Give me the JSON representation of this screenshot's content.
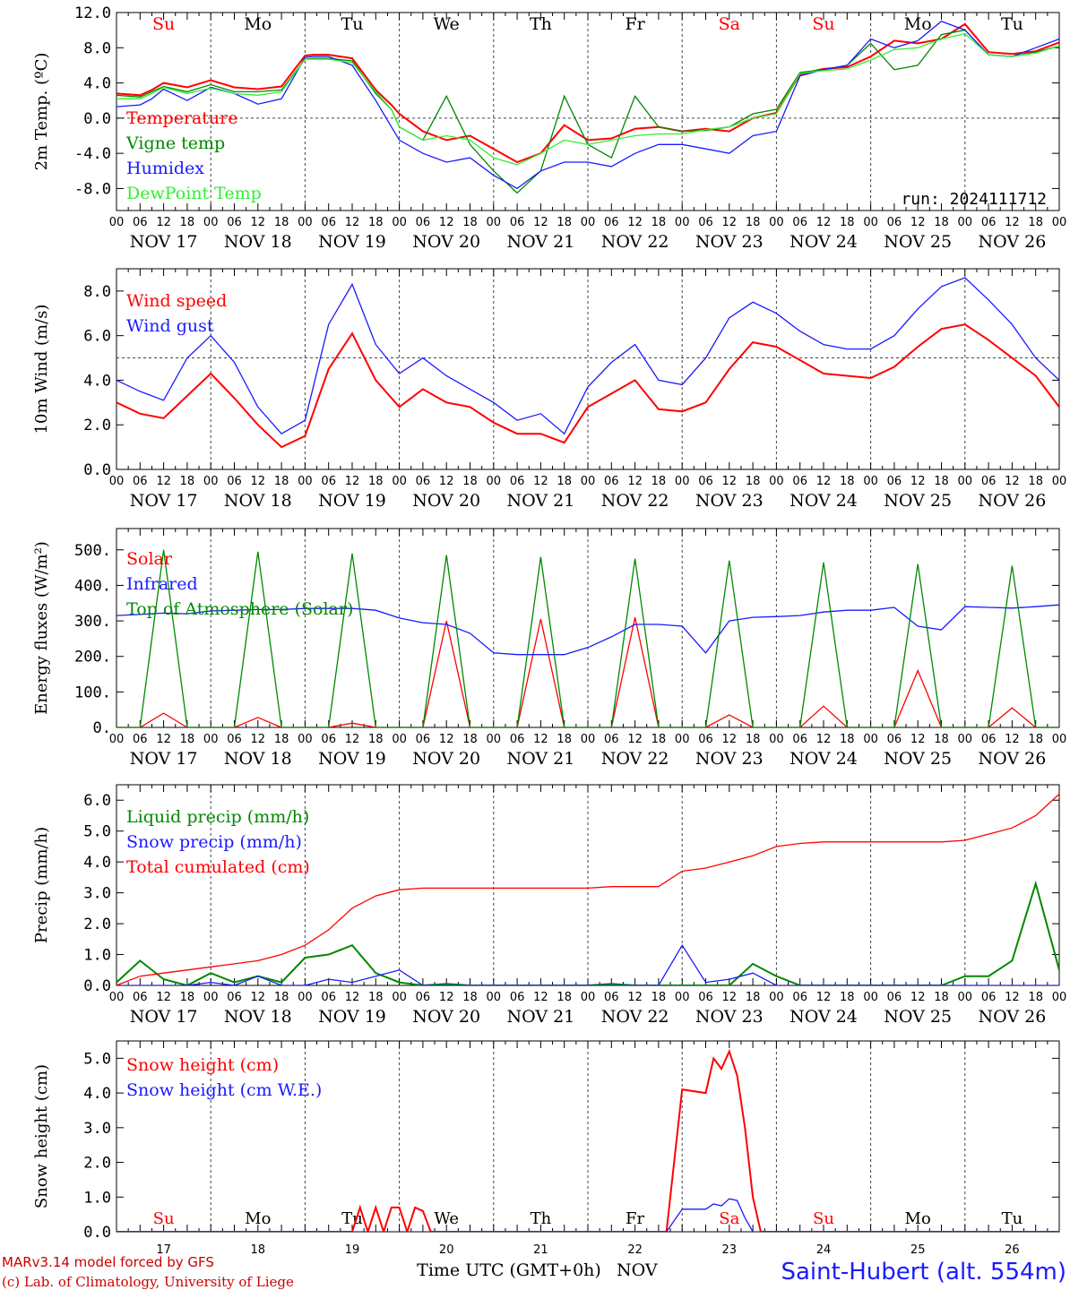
{
  "footer": {
    "model": "MARv3.14 model forced by GFS",
    "credit": "(c) Lab. of Climatology, University of Liege",
    "xaxis_label": "Time UTC (GMT+0h)",
    "xaxis_unit": "NOV",
    "station": "Saint-Hubert (alt. 554m)",
    "color_credit": "#cc0000",
    "color_station": "#1a1aff"
  },
  "run_label": "run: 2024111712",
  "days": {
    "weekday_names": [
      "Su",
      "Mo",
      "Tu",
      "We",
      "Th",
      "Fr",
      "Sa",
      "Su",
      "Mo",
      "Tu"
    ],
    "weekday_colors": [
      "#ff0000",
      "#000000",
      "#000000",
      "#000000",
      "#000000",
      "#000000",
      "#ff0000",
      "#ff0000",
      "#000000",
      "#000000"
    ],
    "date_labels": [
      "NOV 17",
      "NOV 18",
      "NOV 19",
      "NOV 20",
      "NOV 21",
      "NOV 22",
      "NOV 23",
      "NOV 24",
      "NOV 25",
      "NOV 26"
    ],
    "day_numbers": [
      "17",
      "18",
      "19",
      "20",
      "21",
      "22",
      "23",
      "24",
      "25",
      "26"
    ],
    "hour_ticks": [
      "00",
      "06",
      "12",
      "18"
    ],
    "last_tick": "00"
  },
  "chart_data": [
    {
      "type": "line",
      "ylabel": "2m Temp. (ºC)",
      "ylim": [
        -10.5,
        12
      ],
      "yticks": [
        "-8.0",
        "-4.0",
        "0.0",
        "4.0",
        "8.0",
        "12.0"
      ],
      "ytick_values": [
        -8,
        -4,
        0,
        4,
        8,
        12
      ],
      "ref_line": 0,
      "x_hours": [
        0,
        6,
        9,
        12,
        18,
        24,
        30,
        36,
        42,
        48,
        50,
        54,
        60,
        66,
        70,
        72,
        78,
        84,
        90,
        96,
        102,
        108,
        114,
        120,
        126,
        132,
        138,
        144,
        150,
        156,
        162,
        168,
        174,
        180,
        186,
        192,
        198,
        204,
        210,
        216,
        222,
        228,
        234,
        240
      ],
      "series": [
        {
          "name": "Temperature",
          "color": "#ff0000",
          "values": [
            2.8,
            2.6,
            3.2,
            4.0,
            3.5,
            4.3,
            3.5,
            3.3,
            3.6,
            7.1,
            7.2,
            7.2,
            6.8,
            3.2,
            1.5,
            0.5,
            -1.5,
            -2.5,
            -2.0,
            -3.5,
            -5.0,
            -4.0,
            -0.8,
            -2.5,
            -2.3,
            -1.2,
            -1.0,
            -1.5,
            -1.2,
            -1.5,
            0.0,
            0.6,
            5.0,
            5.6,
            5.8,
            7.0,
            8.8,
            8.5,
            9.0,
            10.7,
            7.5,
            7.3,
            7.6,
            8.6
          ]
        },
        {
          "name": "Vigne temp",
          "color": "#008800",
          "values": [
            2.6,
            2.4,
            3.0,
            3.6,
            3.0,
            3.8,
            3.0,
            3.0,
            3.2,
            6.7,
            6.8,
            6.8,
            6.5,
            2.8,
            1.0,
            -1.0,
            -2.5,
            2.5,
            -3.0,
            -6.0,
            -8.5,
            -6.0,
            2.5,
            -3.0,
            -4.5,
            2.5,
            -1.0,
            -1.5,
            -1.4,
            -1.0,
            0.5,
            1.0,
            5.2,
            5.5,
            6.0,
            8.5,
            5.5,
            6.0,
            9.5,
            10.0,
            7.2,
            7.0,
            7.5,
            8.2
          ]
        },
        {
          "name": "Humidex",
          "color": "#1a1aff",
          "values": [
            1.3,
            1.5,
            2.2,
            3.3,
            2.0,
            3.5,
            2.8,
            1.6,
            2.2,
            6.9,
            7.0,
            7.0,
            6.0,
            2.0,
            -1.0,
            -2.5,
            -4.0,
            -5.0,
            -4.5,
            -6.5,
            -8.0,
            -6.0,
            -5.0,
            -5.0,
            -5.5,
            -4.0,
            -3.0,
            -3.0,
            -3.5,
            -4.0,
            -2.0,
            -1.5,
            4.8,
            5.5,
            6.0,
            9.0,
            8.0,
            8.8,
            11.0,
            10.0,
            7.2,
            7.0,
            8.0,
            9.0
          ]
        },
        {
          "name": "DewPoint Temp",
          "color": "#33ee33",
          "values": [
            2.2,
            2.2,
            2.8,
            3.5,
            2.8,
            3.4,
            2.8,
            2.6,
            3.0,
            6.7,
            6.7,
            6.7,
            6.3,
            3.0,
            1.0,
            -1.0,
            -2.5,
            -2.0,
            -2.5,
            -4.5,
            -5.3,
            -4.0,
            -2.5,
            -3.0,
            -2.5,
            -2.0,
            -1.8,
            -1.8,
            -1.3,
            -1.0,
            0.0,
            0.5,
            5.1,
            5.4,
            5.6,
            6.6,
            7.8,
            8.0,
            9.0,
            9.6,
            7.2,
            7.0,
            7.4,
            8.2
          ]
        }
      ]
    },
    {
      "type": "line",
      "ylabel": "10m Wind (m/s)",
      "ylim": [
        0,
        9
      ],
      "yticks": [
        "0.0",
        "2.0",
        "4.0",
        "6.0",
        "8.0"
      ],
      "ytick_values": [
        0,
        2,
        4,
        6,
        8
      ],
      "ref_line": 5,
      "x_hours": [
        0,
        6,
        12,
        18,
        24,
        30,
        36,
        42,
        48,
        54,
        60,
        66,
        72,
        78,
        84,
        90,
        96,
        102,
        108,
        114,
        120,
        126,
        132,
        138,
        144,
        150,
        156,
        162,
        168,
        174,
        180,
        186,
        192,
        198,
        204,
        210,
        216,
        222,
        228,
        234,
        240
      ],
      "series": [
        {
          "name": "Wind speed",
          "color": "#ff0000",
          "values": [
            3.0,
            2.5,
            2.3,
            3.3,
            4.3,
            3.2,
            2.0,
            1.0,
            1.5,
            4.5,
            6.1,
            4.0,
            2.8,
            3.6,
            3.0,
            2.8,
            2.1,
            1.6,
            1.6,
            1.2,
            2.8,
            3.4,
            4.0,
            2.7,
            2.6,
            3.0,
            4.5,
            5.7,
            5.5,
            4.9,
            4.3,
            4.2,
            4.1,
            4.6,
            5.5,
            6.3,
            6.5,
            5.8,
            5.0,
            4.2,
            2.8
          ]
        },
        {
          "name": "Wind gust",
          "color": "#1a1aff",
          "values": [
            4.0,
            3.5,
            3.1,
            5.0,
            6.0,
            4.8,
            2.8,
            1.6,
            2.2,
            6.5,
            8.3,
            5.6,
            4.3,
            5.0,
            4.2,
            3.6,
            3.0,
            2.2,
            2.5,
            1.6,
            3.7,
            4.8,
            5.6,
            4.0,
            3.8,
            5.0,
            6.8,
            7.5,
            7.0,
            6.2,
            5.6,
            5.4,
            5.4,
            6.0,
            7.2,
            8.2,
            8.6,
            7.6,
            6.5,
            5.0,
            4.0
          ]
        }
      ]
    },
    {
      "type": "line",
      "ylabel": "Energy fluxes (W/m²)",
      "ylim": [
        0,
        560
      ],
      "yticks": [
        "0.",
        "100.",
        "200.",
        "300.",
        "400.",
        "500."
      ],
      "ytick_values": [
        0,
        100,
        200,
        300,
        400,
        500
      ],
      "x_hours": [
        0,
        6,
        12,
        18,
        24,
        30,
        36,
        42,
        48,
        54,
        60,
        66,
        72,
        78,
        84,
        90,
        96,
        102,
        108,
        114,
        120,
        126,
        132,
        138,
        144,
        150,
        156,
        162,
        168,
        174,
        180,
        186,
        192,
        198,
        204,
        210,
        216,
        222,
        228,
        234,
        240
      ],
      "series": [
        {
          "name": "Solar",
          "color": "#ff0000",
          "values": [
            0,
            0,
            40,
            0,
            0,
            0,
            28,
            0,
            0,
            0,
            12,
            0,
            0,
            0,
            300,
            0,
            0,
            0,
            305,
            0,
            0,
            0,
            310,
            0,
            0,
            0,
            35,
            0,
            0,
            0,
            60,
            0,
            0,
            0,
            160,
            0,
            0,
            0,
            55,
            0,
            0
          ]
        },
        {
          "name": "Infrared",
          "color": "#1a1aff",
          "values": [
            315,
            318,
            322,
            320,
            328,
            330,
            332,
            332,
            335,
            335,
            335,
            330,
            308,
            295,
            290,
            265,
            210,
            205,
            205,
            205,
            225,
            255,
            290,
            290,
            285,
            210,
            300,
            310,
            312,
            315,
            325,
            330,
            330,
            338,
            285,
            275,
            340,
            338,
            336,
            340,
            345
          ]
        },
        {
          "name": "Top of Atmosphere (Solar)",
          "color": "#008800",
          "values": [
            0,
            0,
            500,
            0,
            0,
            0,
            495,
            0,
            0,
            0,
            490,
            0,
            0,
            0,
            485,
            0,
            0,
            0,
            480,
            0,
            0,
            0,
            475,
            0,
            0,
            0,
            470,
            0,
            0,
            0,
            465,
            0,
            0,
            0,
            460,
            0,
            0,
            0,
            455,
            0,
            0
          ]
        }
      ]
    },
    {
      "type": "line",
      "ylabel": "Precip (mm/h)",
      "ylim": [
        0,
        6.5
      ],
      "yticks": [
        "0.0",
        "1.0",
        "2.0",
        "3.0",
        "4.0",
        "5.0",
        "6.0"
      ],
      "ytick_values": [
        0,
        1,
        2,
        3,
        4,
        5,
        6
      ],
      "x_hours": [
        0,
        6,
        12,
        18,
        24,
        30,
        36,
        42,
        48,
        54,
        60,
        66,
        72,
        78,
        84,
        90,
        96,
        102,
        108,
        114,
        120,
        126,
        132,
        138,
        144,
        150,
        156,
        162,
        168,
        174,
        180,
        186,
        192,
        198,
        204,
        210,
        216,
        222,
        228,
        234,
        240
      ],
      "series": [
        {
          "name": "Liquid precip (mm/h)",
          "color": "#008800",
          "values": [
            0.1,
            0.8,
            0.2,
            0.0,
            0.4,
            0.1,
            0.3,
            0.1,
            0.9,
            1.0,
            1.3,
            0.4,
            0.1,
            0.0,
            0.05,
            0.0,
            0.0,
            0.0,
            0.0,
            0.0,
            0.0,
            0.05,
            0.0,
            0.0,
            0.0,
            0.0,
            0.0,
            0.7,
            0.3,
            0.0,
            0.0,
            0.0,
            0.0,
            0.0,
            0.0,
            0.0,
            0.3,
            0.3,
            0.8,
            3.3,
            0.5
          ]
        },
        {
          "name": "Snow precip (mm/h)",
          "color": "#1a1aff",
          "values": [
            0.0,
            0.0,
            0.0,
            0.0,
            0.1,
            0.0,
            0.3,
            0.0,
            0.0,
            0.2,
            0.1,
            0.3,
            0.5,
            0.0,
            0.0,
            0.0,
            0.0,
            0.0,
            0.0,
            0.0,
            0.0,
            0.0,
            0.0,
            0.0,
            1.3,
            0.1,
            0.2,
            0.4,
            0.0,
            0.0,
            0.0,
            0.0,
            0.0,
            0.0,
            0.0,
            0.0,
            0.0,
            0.0,
            0.0,
            0.0,
            0.0
          ]
        },
        {
          "name": "Total cumulated (cm)",
          "color": "#ff0000",
          "values": [
            0.0,
            0.3,
            0.4,
            0.5,
            0.6,
            0.7,
            0.8,
            1.0,
            1.3,
            1.8,
            2.5,
            2.9,
            3.1,
            3.15,
            3.15,
            3.15,
            3.15,
            3.15,
            3.15,
            3.15,
            3.15,
            3.2,
            3.2,
            3.2,
            3.7,
            3.8,
            4.0,
            4.2,
            4.5,
            4.6,
            4.65,
            4.65,
            4.65,
            4.65,
            4.65,
            4.65,
            4.7,
            4.9,
            5.1,
            5.5,
            6.2
          ]
        }
      ]
    },
    {
      "type": "line",
      "ylabel": "Snow height (cm)",
      "ylim": [
        0,
        5.5
      ],
      "yticks": [
        "0.0",
        "1.0",
        "2.0",
        "3.0",
        "4.0",
        "5.0"
      ],
      "ytick_values": [
        0,
        1,
        2,
        3,
        4,
        5
      ],
      "x_hours": [
        0,
        60,
        62,
        64,
        66,
        68,
        70,
        72,
        74,
        76,
        78,
        80,
        82,
        84,
        140,
        144,
        150,
        152,
        154,
        156,
        158,
        160,
        162,
        164,
        166,
        240
      ],
      "series": [
        {
          "name": "Snow height (cm)",
          "color": "#ff0000",
          "values": [
            0,
            0,
            0.7,
            0,
            0.7,
            0,
            0.7,
            0.7,
            0,
            0.7,
            0.6,
            0,
            0,
            0,
            0,
            4.1,
            4.0,
            5.0,
            4.7,
            5.2,
            4.5,
            3.0,
            1.0,
            0,
            0,
            0
          ]
        },
        {
          "name": "Snow height (cm W.E.)",
          "color": "#1a1aff",
          "values": [
            0,
            0,
            0,
            0,
            0,
            0,
            0,
            0,
            0,
            0,
            0,
            0,
            0,
            0,
            0,
            0.65,
            0.65,
            0.8,
            0.75,
            0.95,
            0.9,
            0.4,
            0,
            0,
            0,
            0
          ]
        }
      ]
    }
  ]
}
